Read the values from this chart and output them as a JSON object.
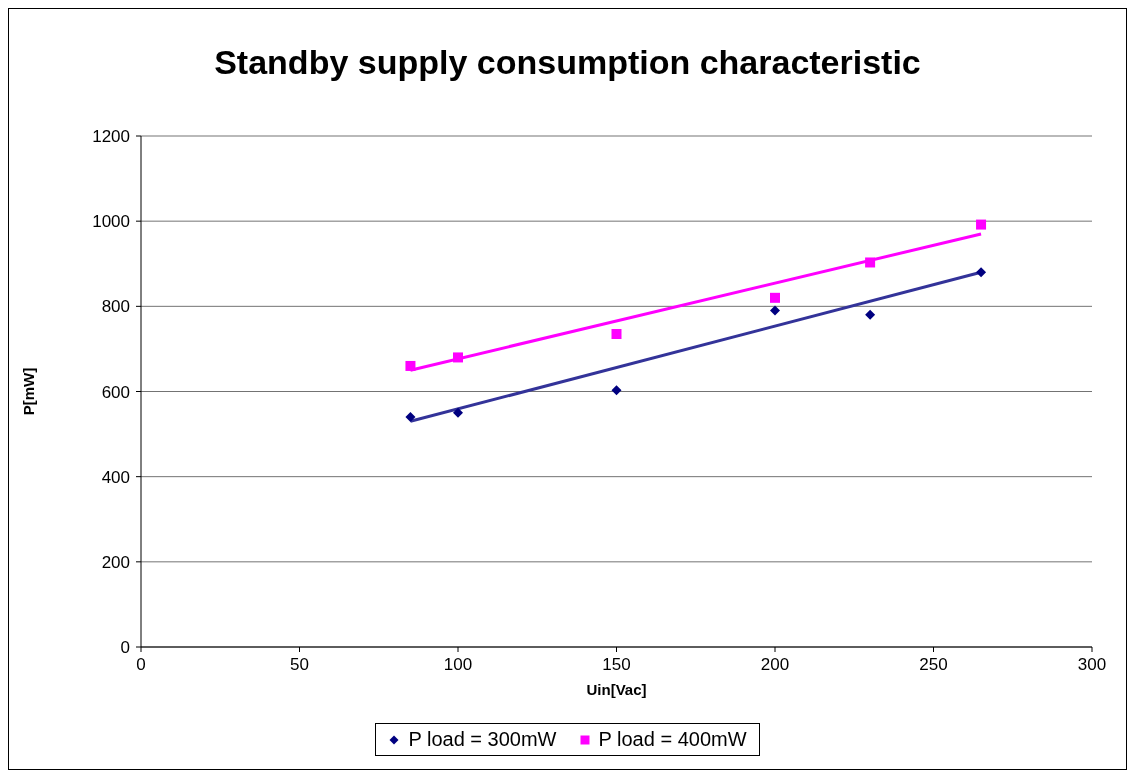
{
  "chart_data": {
    "type": "scatter",
    "title": "Standby supply consumption characteristic",
    "xlabel": "Uin[Vac]",
    "ylabel": "P[mW]",
    "series": [
      {
        "name": "P load = 300mW",
        "marker": "diamond",
        "color": "#000080",
        "x": [
          85,
          100,
          150,
          200,
          230,
          265
        ],
        "values": [
          540,
          550,
          603,
          790,
          780,
          880
        ]
      },
      {
        "name": "P load = 400mW",
        "marker": "square",
        "color": "#ff00ff",
        "x": [
          85,
          100,
          150,
          200,
          230,
          265
        ],
        "values": [
          660,
          680,
          735,
          820,
          903,
          992
        ]
      },
      {
        "type": "line",
        "color": "#333399",
        "x": [
          85,
          265
        ],
        "values": [
          530,
          880
        ]
      },
      {
        "type": "line",
        "color": "#ff00ff",
        "x": [
          85,
          265
        ],
        "values": [
          650,
          970
        ]
      }
    ],
    "xlim": [
      0,
      300
    ],
    "xticks": [
      0,
      50,
      100,
      150,
      200,
      250,
      300
    ],
    "ylim": [
      0,
      1200
    ],
    "yticks": [
      0,
      200,
      400,
      600,
      800,
      1000,
      1200
    ],
    "grid": "y",
    "legend": "bottom"
  }
}
